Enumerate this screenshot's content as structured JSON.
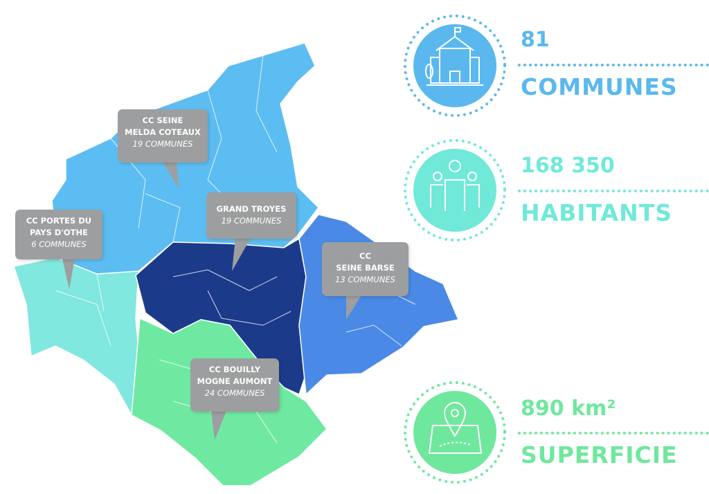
{
  "colors": {
    "seine_melda": "#5cbdf2",
    "portes_othe": "#80e8de",
    "grand_troyes": "#1c3a8a",
    "seine_barse": "#4a8ae6",
    "bouilly": "#6fe9a1",
    "callout": "#9d9e9f",
    "stat_blue": "#5ab8ef",
    "stat_teal": "#70e9d9",
    "stat_green": "#6fe89d"
  },
  "regions": [
    {
      "line1": "CC SEINE",
      "line2": "MELDA COTEAUX",
      "count": "19 COMMUNES"
    },
    {
      "line1": "CC PORTES DU",
      "line2": "PAYS D'OTHE",
      "count": "6 COMMUNES"
    },
    {
      "line1": "GRAND TROYES",
      "line2": "",
      "count": "19 COMMUNES"
    },
    {
      "line1": "CC",
      "line2": "SEINE BARSE",
      "count": "13 COMMUNES"
    },
    {
      "line1": "CC BOUILLY",
      "line2": "MOGNE AUMONT",
      "count": "24 COMMUNES"
    }
  ],
  "stats": [
    {
      "value": "81",
      "label": "COMMUNES",
      "icon": "town-hall-icon"
    },
    {
      "value": "168 350",
      "label": "HABITANTS",
      "icon": "people-icon"
    },
    {
      "value": "890 km²",
      "label": "SUPERFICIE",
      "icon": "map-pin-icon"
    }
  ]
}
